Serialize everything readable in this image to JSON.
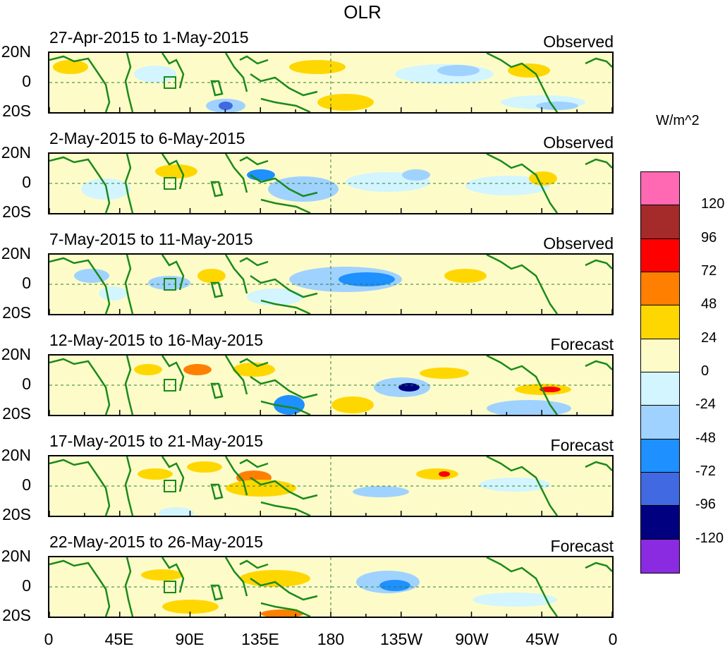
{
  "title": "OLR",
  "panels": [
    {
      "date": "27-Apr-2015 to 1-May-2015",
      "status": "Observed"
    },
    {
      "date": "2-May-2015 to 6-May-2015",
      "status": "Observed"
    },
    {
      "date": "7-May-2015 to 11-May-2015",
      "status": "Observed"
    },
    {
      "date": "12-May-2015 to 16-May-2015",
      "status": "Forecast"
    },
    {
      "date": "17-May-2015 to 21-May-2015",
      "status": "Forecast"
    },
    {
      "date": "22-May-2015 to 26-May-2015",
      "status": "Forecast"
    }
  ],
  "lat_labels": [
    "20N",
    "0",
    "20S"
  ],
  "lon_labels": [
    "0",
    "45E",
    "90E",
    "135E",
    "180",
    "135W",
    "90W",
    "45W",
    "0"
  ],
  "legend": {
    "units": "W/m^2",
    "levels": [
      "120",
      "96",
      "72",
      "48",
      "24",
      "0",
      "-24",
      "-48",
      "-72",
      "-96",
      "-120"
    ],
    "colors": [
      "#ff69b4",
      "#a52a2a",
      "#ff0000",
      "#ff7f00",
      "#ffd700",
      "#fdfcc9",
      "#d2f5ff",
      "#a0d2ff",
      "#1e90ff",
      "#4169e1",
      "#000080",
      "#8a2be2"
    ]
  },
  "map_colors": {
    "coast": "#1a8a1a",
    "equator_line": "#2e7d32",
    "dateline": "#2e7d32"
  }
}
